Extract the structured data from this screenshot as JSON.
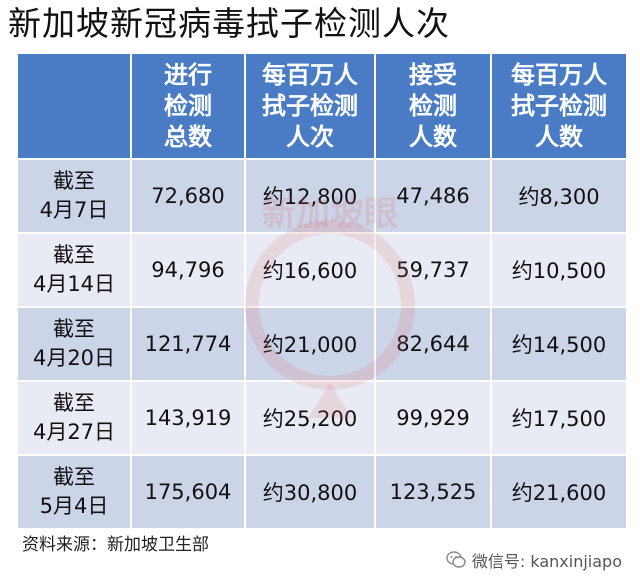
{
  "title": "新加坡新冠病毒拭子检测人次",
  "chart_data": {
    "type": "table",
    "columns": [
      {
        "lines": [
          "进行",
          "检测",
          "总数"
        ]
      },
      {
        "lines": [
          "每百万人",
          "拭子检测",
          "人次"
        ]
      },
      {
        "lines": [
          "接受",
          "检测",
          "人数"
        ]
      },
      {
        "lines": [
          "每百万人",
          "拭子检测",
          "人数"
        ]
      }
    ],
    "rows": [
      {
        "date_lines": [
          "截至",
          "4月7日"
        ],
        "cells": [
          "72,680",
          "约12,800",
          "47,486",
          "约8,300"
        ]
      },
      {
        "date_lines": [
          "截至",
          "4月14日"
        ],
        "cells": [
          "94,796",
          "约16,600",
          "59,737",
          "约10,500"
        ]
      },
      {
        "date_lines": [
          "截至",
          "4月20日"
        ],
        "cells": [
          "121,774",
          "约21,000",
          "82,644",
          "约14,500"
        ]
      },
      {
        "date_lines": [
          "截至",
          "4月27日"
        ],
        "cells": [
          "143,919",
          "约25,200",
          "99,929",
          "约17,500"
        ]
      },
      {
        "date_lines": [
          "截至",
          "5月4日"
        ],
        "cells": [
          "175,604",
          "约30,800",
          "123,525",
          "约21,600"
        ]
      }
    ]
  },
  "watermark_text": "新加坡眼",
  "source": "资料来源：新加坡卫生部",
  "credit": "微信号: kanxinjiapo",
  "colors": {
    "header": "#4a7cc6",
    "row_odd": "#ccd4e8",
    "row_even": "#e8ebf4"
  }
}
